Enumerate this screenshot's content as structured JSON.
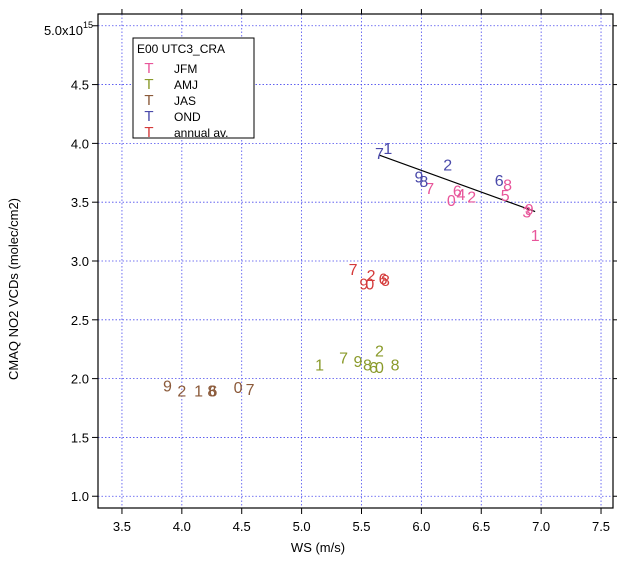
{
  "chart_data": {
    "type": "scatter",
    "title": "",
    "xlabel": "WS (m/s)",
    "ylabel": "CMAQ NO2 VCDs (molec/cm2)",
    "xlim": [
      3.3,
      7.6
    ],
    "ylim": [
      0.9,
      5.1
    ],
    "x_ticks": [
      "3.5",
      "4.0",
      "4.5",
      "5.0",
      "5.5",
      "6.0",
      "6.5",
      "7.0",
      "7.5"
    ],
    "x_tick_values": [
      3.5,
      4.0,
      4.5,
      5.0,
      5.5,
      6.0,
      6.5,
      7.0,
      7.5
    ],
    "y_ticks": [
      "1.0",
      "1.5",
      "2.0",
      "2.5",
      "3.0",
      "3.5",
      "4.0",
      "4.5",
      "5.0x10"
    ],
    "y_tick_values": [
      1.0,
      1.5,
      2.0,
      2.5,
      3.0,
      3.5,
      4.0,
      4.5,
      5.0
    ],
    "y_exponent": "15",
    "grid": true,
    "legend": {
      "position": "top-left",
      "title": "E00 UTC3_CRA",
      "marker": "T"
    },
    "series": [
      {
        "name": "JFM",
        "color": "#e8559a",
        "points": [
          {
            "label": "1",
            "x": 6.95,
            "y": 3.22
          },
          {
            "label": "3",
            "x": 6.88,
            "y": 3.42
          },
          {
            "label": "9",
            "x": 6.9,
            "y": 3.44
          },
          {
            "label": "5",
            "x": 6.7,
            "y": 3.56
          },
          {
            "label": "8",
            "x": 6.72,
            "y": 3.65
          },
          {
            "label": "2",
            "x": 6.42,
            "y": 3.55
          },
          {
            "label": "6",
            "x": 6.3,
            "y": 3.6
          },
          {
            "label": "0",
            "x": 6.25,
            "y": 3.52
          },
          {
            "label": "4",
            "x": 6.33,
            "y": 3.57
          },
          {
            "label": "7",
            "x": 6.07,
            "y": 3.62
          }
        ]
      },
      {
        "name": "AMJ",
        "color": "#8a9a2a",
        "points": [
          {
            "label": "1",
            "x": 5.15,
            "y": 2.12
          },
          {
            "label": "7",
            "x": 5.35,
            "y": 2.18
          },
          {
            "label": "9",
            "x": 5.47,
            "y": 2.15
          },
          {
            "label": "8",
            "x": 5.55,
            "y": 2.12
          },
          {
            "label": "6",
            "x": 5.6,
            "y": 2.1
          },
          {
            "label": "0",
            "x": 5.65,
            "y": 2.1
          },
          {
            "label": "2",
            "x": 5.65,
            "y": 2.24
          },
          {
            "label": "8",
            "x": 5.78,
            "y": 2.12
          }
        ]
      },
      {
        "name": "JAS",
        "color": "#8b5a3a",
        "points": [
          {
            "label": "9",
            "x": 3.88,
            "y": 1.94
          },
          {
            "label": "2",
            "x": 4.0,
            "y": 1.9
          },
          {
            "label": "1",
            "x": 4.14,
            "y": 1.9
          },
          {
            "label": "8",
            "x": 4.25,
            "y": 1.9
          },
          {
            "label": "6",
            "x": 4.26,
            "y": 1.9
          },
          {
            "label": "0",
            "x": 4.47,
            "y": 1.93
          },
          {
            "label": "7",
            "x": 4.57,
            "y": 1.91
          }
        ]
      },
      {
        "name": "OND",
        "color": "#4a4aaa",
        "points": [
          {
            "label": "7",
            "x": 5.65,
            "y": 3.92
          },
          {
            "label": "1",
            "x": 5.72,
            "y": 3.96
          },
          {
            "label": "2",
            "x": 6.22,
            "y": 3.82
          },
          {
            "label": "9",
            "x": 5.98,
            "y": 3.72
          },
          {
            "label": "8",
            "x": 6.02,
            "y": 3.68
          },
          {
            "label": "6",
            "x": 6.65,
            "y": 3.69
          }
        ]
      },
      {
        "name": "annual av.",
        "color": "#d43a3a",
        "points": [
          {
            "label": "7",
            "x": 5.43,
            "y": 2.93
          },
          {
            "label": "2",
            "x": 5.58,
            "y": 2.88
          },
          {
            "label": "6",
            "x": 5.68,
            "y": 2.85
          },
          {
            "label": "8",
            "x": 5.7,
            "y": 2.84
          },
          {
            "label": "9",
            "x": 5.52,
            "y": 2.81
          },
          {
            "label": "0",
            "x": 5.57,
            "y": 2.81
          }
        ]
      }
    ],
    "fit_line": {
      "color": "#000000",
      "x": [
        5.65,
        6.95
      ],
      "y": [
        3.9,
        3.42
      ]
    }
  }
}
